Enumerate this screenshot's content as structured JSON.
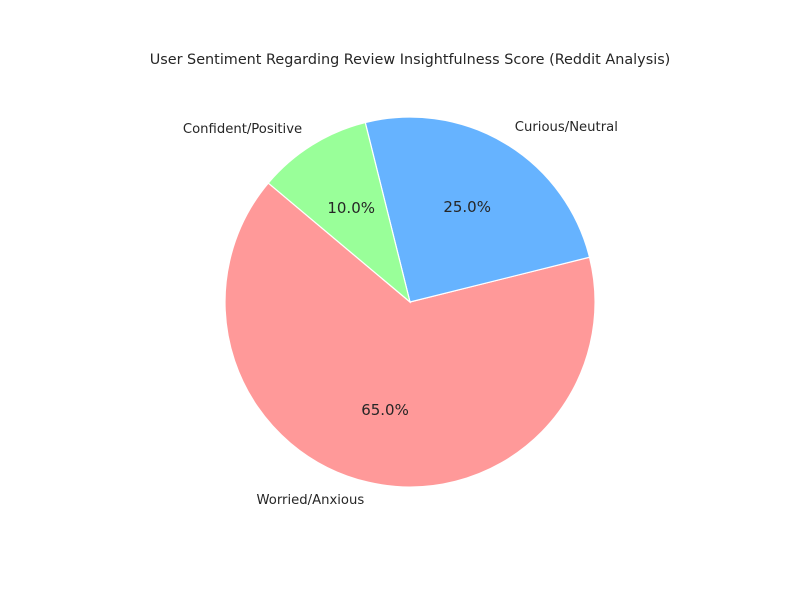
{
  "chart_data": {
    "type": "pie",
    "title": "User Sentiment Regarding Review Insightfulness Score (Reddit Analysis)",
    "slices": [
      {
        "label": "Worried/Anxious",
        "value": 65.0,
        "percent_label": "65.0%",
        "color": "#ff9999"
      },
      {
        "label": "Curious/Neutral",
        "value": 25.0,
        "percent_label": "25.0%",
        "color": "#66b3ff"
      },
      {
        "label": "Confident/Positive",
        "value": 10.0,
        "percent_label": "10.0%",
        "color": "#99ff99"
      }
    ],
    "start_angle_deg": 140,
    "direction": "counterclockwise",
    "wedge_edge_color": "#ffffff"
  }
}
